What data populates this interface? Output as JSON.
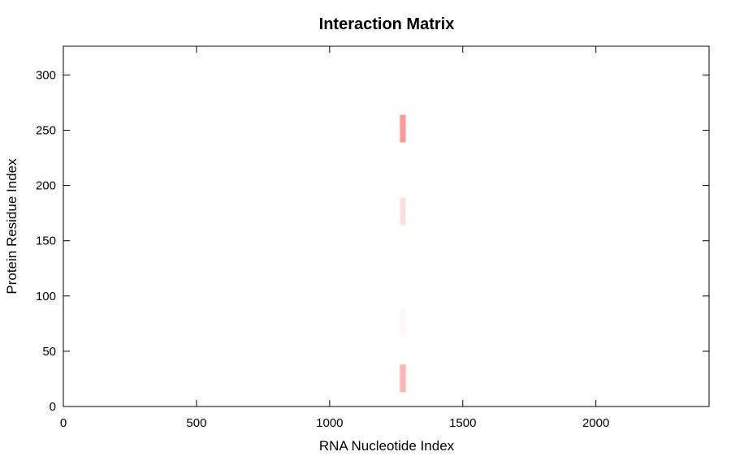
{
  "chart_data": {
    "type": "heatmap",
    "title": "Interaction Matrix",
    "xlabel": "RNA Nucleotide Index",
    "ylabel": "Protein Residue Index",
    "xlim": [
      0,
      2425
    ],
    "ylim": [
      0,
      326
    ],
    "xticks": [
      0,
      500,
      1000,
      1500,
      2000
    ],
    "yticks": [
      0,
      50,
      100,
      150,
      200,
      250,
      300
    ],
    "grid": false,
    "color_low": "#ffffff",
    "color_high": "#ff0000",
    "cells": [
      {
        "x": [
          1264,
          1286
        ],
        "y": [
          239,
          264
        ],
        "intensity": 0.42,
        "color": "#ff9898"
      },
      {
        "x": [
          1264,
          1286
        ],
        "y": [
          164,
          189
        ],
        "intensity": 0.12,
        "color": "#fee0e0"
      },
      {
        "x": [
          1264,
          1286
        ],
        "y": [
          64,
          89
        ],
        "intensity": 0.04,
        "color": "#fff6f6"
      },
      {
        "x": [
          1264,
          1286
        ],
        "y": [
          13,
          38
        ],
        "intensity": 0.3,
        "color": "#ffb4b4"
      }
    ]
  }
}
